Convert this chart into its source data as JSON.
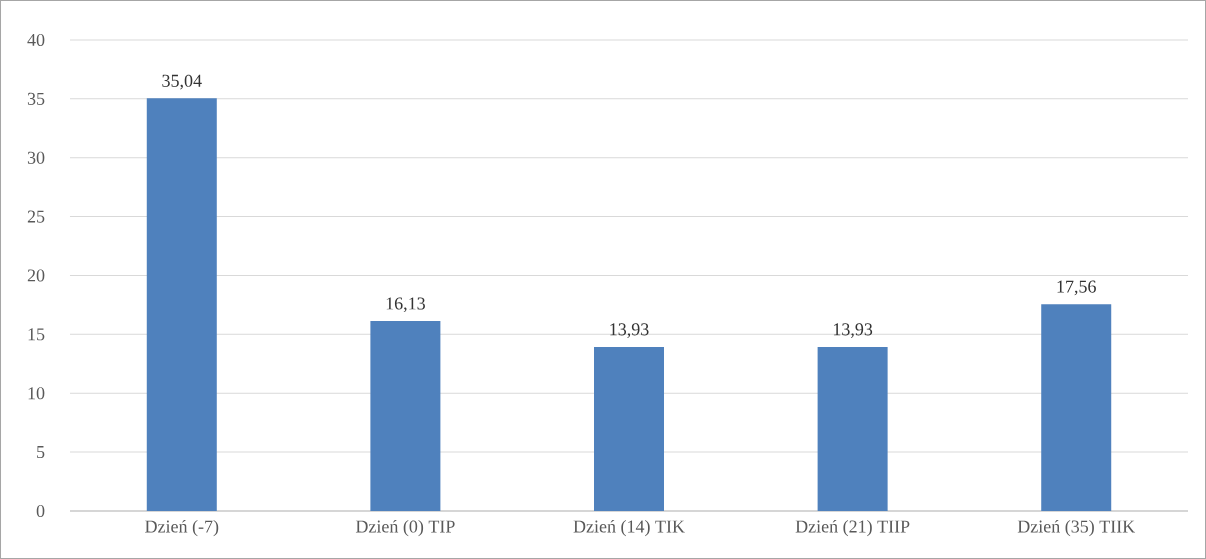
{
  "chart_data": {
    "type": "bar",
    "categories": [
      "Dzień (-7)",
      "Dzień (0) TIP",
      "Dzień (14) TIK",
      "Dzień (21) TIIP",
      "Dzień (35) TIIK"
    ],
    "values": [
      35.04,
      16.13,
      13.93,
      13.93,
      17.56
    ],
    "value_labels": [
      "35,04",
      "16,13",
      "13,93",
      "13,93",
      "17,56"
    ],
    "color": "#4f81bd",
    "ylim": [
      0,
      40
    ],
    "yticks": [
      0,
      5,
      10,
      15,
      20,
      25,
      30,
      35,
      40
    ],
    "grid": "y"
  }
}
